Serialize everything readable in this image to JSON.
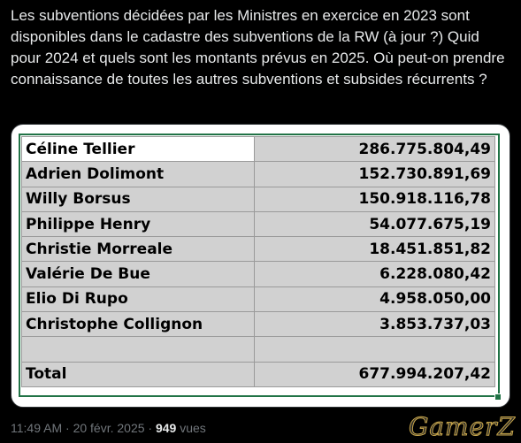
{
  "post": {
    "text": "Les subventions décidées par les Ministres en exercice en 2023 sont disponibles dans le cadastre des subventions de la RW (à jour ?) Quid pour 2024 et quels sont les montants prévus en 2025. Où peut-on prendre connaissance de toutes les autres subventions et subsides récurrents ?"
  },
  "spreadsheet": {
    "rows": [
      {
        "name": "Céline Tellier",
        "amount": "286.775.804,49"
      },
      {
        "name": "Adrien Dolimont",
        "amount": "152.730.891,69"
      },
      {
        "name": "Willy Borsus",
        "amount": "150.918.116,78"
      },
      {
        "name": "Philippe Henry",
        "amount": "54.077.675,19"
      },
      {
        "name": "Christie Morreale",
        "amount": "18.451.851,82"
      },
      {
        "name": "Valérie De Bue",
        "amount": "6.228.080,42"
      },
      {
        "name": "Elio Di Rupo",
        "amount": "4.958.050,00"
      },
      {
        "name": "Christophe Collignon",
        "amount": "3.853.737,03"
      },
      {
        "name": "",
        "amount": ""
      },
      {
        "name": "Total",
        "amount": "677.994.207,42"
      }
    ],
    "selection_color": "#217346"
  },
  "meta": {
    "time": "11:49 AM",
    "separator1": " · ",
    "date": "20 févr. 2025",
    "separator2": " · ",
    "views_count": "949",
    "views_label": " vues"
  },
  "watermark": {
    "text": "GamerZ"
  }
}
